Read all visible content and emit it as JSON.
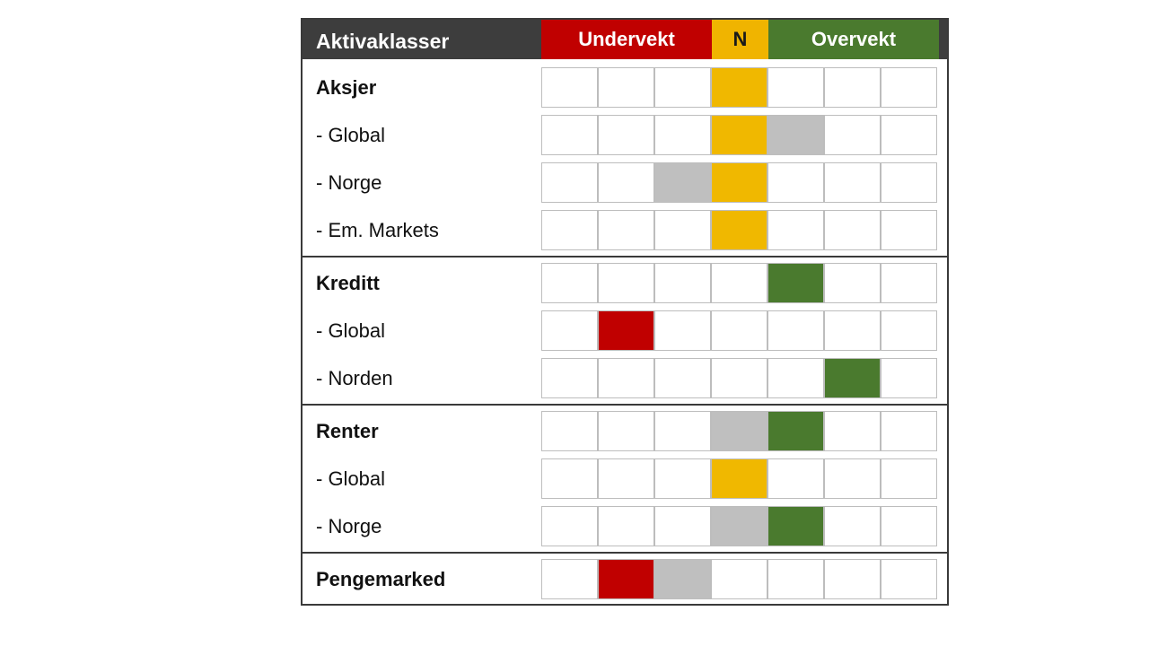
{
  "header": {
    "title": "Aktivaklasser",
    "under": "Undervekt",
    "neutral": "N",
    "over": "Overvekt"
  },
  "colors": {
    "header_bg": "#3d3d3d",
    "underweight": "#c00000",
    "neutral": "#f0b800",
    "overweight": "#4a7a2e",
    "previous": "#bfbfbf"
  },
  "rows": [
    {
      "label": "Aksjer",
      "bold": true,
      "cells": [
        "",
        "",
        "",
        "yellow",
        "",
        "",
        ""
      ]
    },
    {
      "label": "- Global",
      "bold": false,
      "cells": [
        "",
        "",
        "",
        "yellow",
        "gray",
        "",
        ""
      ]
    },
    {
      "label": "- Norge",
      "bold": false,
      "cells": [
        "",
        "",
        "gray",
        "yellow",
        "",
        "",
        ""
      ]
    },
    {
      "label": "- Em. Markets",
      "bold": false,
      "cells": [
        "",
        "",
        "",
        "yellow",
        "",
        "",
        ""
      ]
    },
    {
      "label": "Kreditt",
      "bold": true,
      "cells": [
        "",
        "",
        "",
        "",
        "green",
        "",
        ""
      ]
    },
    {
      "label": "- Global",
      "bold": false,
      "cells": [
        "",
        "red",
        "",
        "",
        "",
        "",
        ""
      ]
    },
    {
      "label": "- Norden",
      "bold": false,
      "cells": [
        "",
        "",
        "",
        "",
        "",
        "green",
        ""
      ]
    },
    {
      "label": "Renter",
      "bold": true,
      "cells": [
        "",
        "",
        "",
        "gray",
        "green",
        "",
        ""
      ]
    },
    {
      "label": "- Global",
      "bold": false,
      "cells": [
        "",
        "",
        "",
        "yellow",
        "",
        "",
        ""
      ]
    },
    {
      "label": "- Norge",
      "bold": false,
      "cells": [
        "",
        "",
        "",
        "gray",
        "green",
        "",
        ""
      ]
    },
    {
      "label": "Pengemarked",
      "bold": true,
      "cells": [
        "",
        "red",
        "gray",
        "",
        "",
        "",
        ""
      ]
    }
  ]
}
